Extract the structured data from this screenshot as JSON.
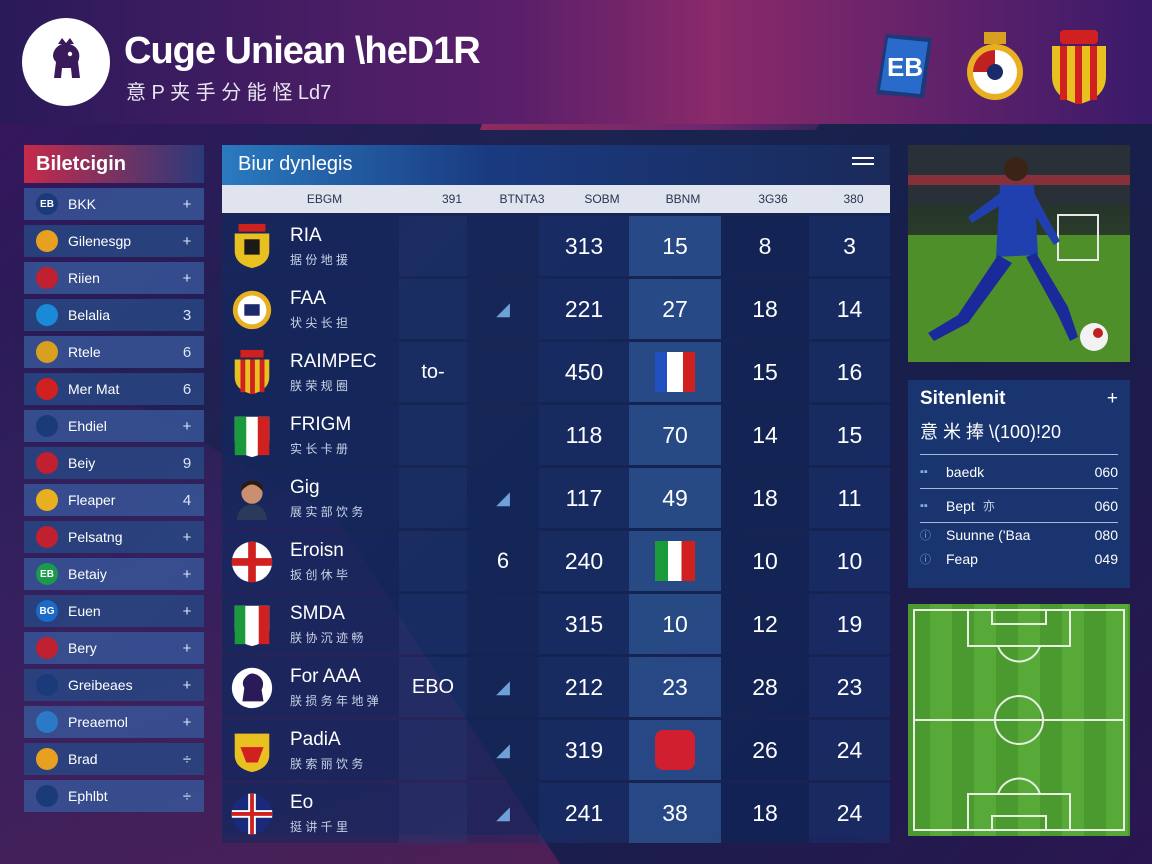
{
  "header": {
    "title": "Cuge Uniean \\heD1R",
    "subtitle": "意 P 夹 手 分 能 怪 Ld7",
    "right_badge_text": "EB"
  },
  "sidebar": {
    "title": "Biletcigin",
    "items": [
      {
        "label": "BKK",
        "icon": "EB",
        "action": "+"
      },
      {
        "label": "Gilenesgp",
        "icon": "",
        "action": "+"
      },
      {
        "label": "Riien",
        "icon": "",
        "action": "+"
      },
      {
        "label": "Belalia",
        "icon": "",
        "action": "3"
      },
      {
        "label": "Rtele",
        "icon": "",
        "action": "6"
      },
      {
        "label": "Mer Mat",
        "icon": "",
        "action": "6"
      },
      {
        "label": "Ehdiel",
        "icon": "",
        "action": "+"
      },
      {
        "label": "Beiy",
        "icon": "",
        "action": "9"
      },
      {
        "label": "Fleaper",
        "icon": "",
        "action": "4"
      },
      {
        "label": "Pelsatng",
        "icon": "",
        "action": "+"
      },
      {
        "label": "Betaiy",
        "icon": "EB",
        "action": "+"
      },
      {
        "label": "Euen",
        "icon": "BG",
        "action": "+"
      },
      {
        "label": "Bery",
        "icon": "",
        "action": "+"
      },
      {
        "label": "Greibeaes",
        "icon": "",
        "action": "+"
      },
      {
        "label": "Preaemol",
        "icon": "",
        "action": "+"
      },
      {
        "label": "Brad",
        "icon": "",
        "action": "÷"
      },
      {
        "label": "Ephlbt",
        "icon": "",
        "action": "÷"
      }
    ]
  },
  "table": {
    "title": "Biur dynlegis",
    "columns": [
      "EBGM",
      "391",
      "BTNTA3",
      "SOBM",
      "BBNM",
      "3G36",
      "380"
    ],
    "rows": [
      {
        "name": "RIA",
        "sub": "据 份 地 援",
        "a": "",
        "b": "",
        "v1": "313",
        "v2": "15",
        "v3": "8",
        "v4": "3"
      },
      {
        "name": "FAA",
        "sub": "状 尖 长 担",
        "a": "",
        "b": "◢",
        "v1": "221",
        "v2": "27",
        "v3": "18",
        "v4": "14"
      },
      {
        "name": "RAIMPEC",
        "sub": "朕 荣 规 圈",
        "a": "to-",
        "b": "",
        "v1": "450",
        "v2": "",
        "v3": "15",
        "v4": "16"
      },
      {
        "name": "FRIGM",
        "sub": "实 长 卡 册",
        "a": "",
        "b": "",
        "v1": "118",
        "v2": "70",
        "v3": "14",
        "v4": "15"
      },
      {
        "name": "Gig",
        "sub": "展 实 部 饮 务",
        "a": "",
        "b": "◢",
        "v1": "117",
        "v2": "49",
        "v3": "18",
        "v4": "11"
      },
      {
        "name": "Eroisn",
        "sub": "扳 创 休 毕",
        "a": "",
        "b": "6",
        "v1": "240",
        "v2": "",
        "v3": "10",
        "v4": "10"
      },
      {
        "name": "SMDA",
        "sub": "朕 协 沉 迹 畅",
        "a": "",
        "b": "",
        "v1": "315",
        "v2": "10",
        "v3": "12",
        "v4": "19"
      },
      {
        "name": "For AAA",
        "sub": "朕 损 务 年 地 弹",
        "a": "EBO",
        "b": "◢",
        "v1": "212",
        "v2": "23",
        "v3": "28",
        "v4": "23"
      },
      {
        "name": "PadiA",
        "sub": "朕 索 丽 饮 务",
        "a": "",
        "b": "◢",
        "v1": "319",
        "v2": "",
        "v3": "26",
        "v4": "24"
      },
      {
        "name": "Eo",
        "sub": "挺 讲 千 里",
        "a": "",
        "b": "◢",
        "v1": "241",
        "v2": "38",
        "v3": "18",
        "v4": "24"
      }
    ]
  },
  "stats_panel": {
    "title": "Sitenlenit",
    "action": "+",
    "subtitle": "意 米 捧 \\(100)!20",
    "rows": [
      {
        "label": "baedk",
        "value": "060"
      },
      {
        "label": "Bept",
        "extra": "亦",
        "value": "060"
      },
      {
        "label": "Suunne ('Baa",
        "value": "080"
      },
      {
        "label": "Feap",
        "value": "049"
      }
    ]
  }
}
